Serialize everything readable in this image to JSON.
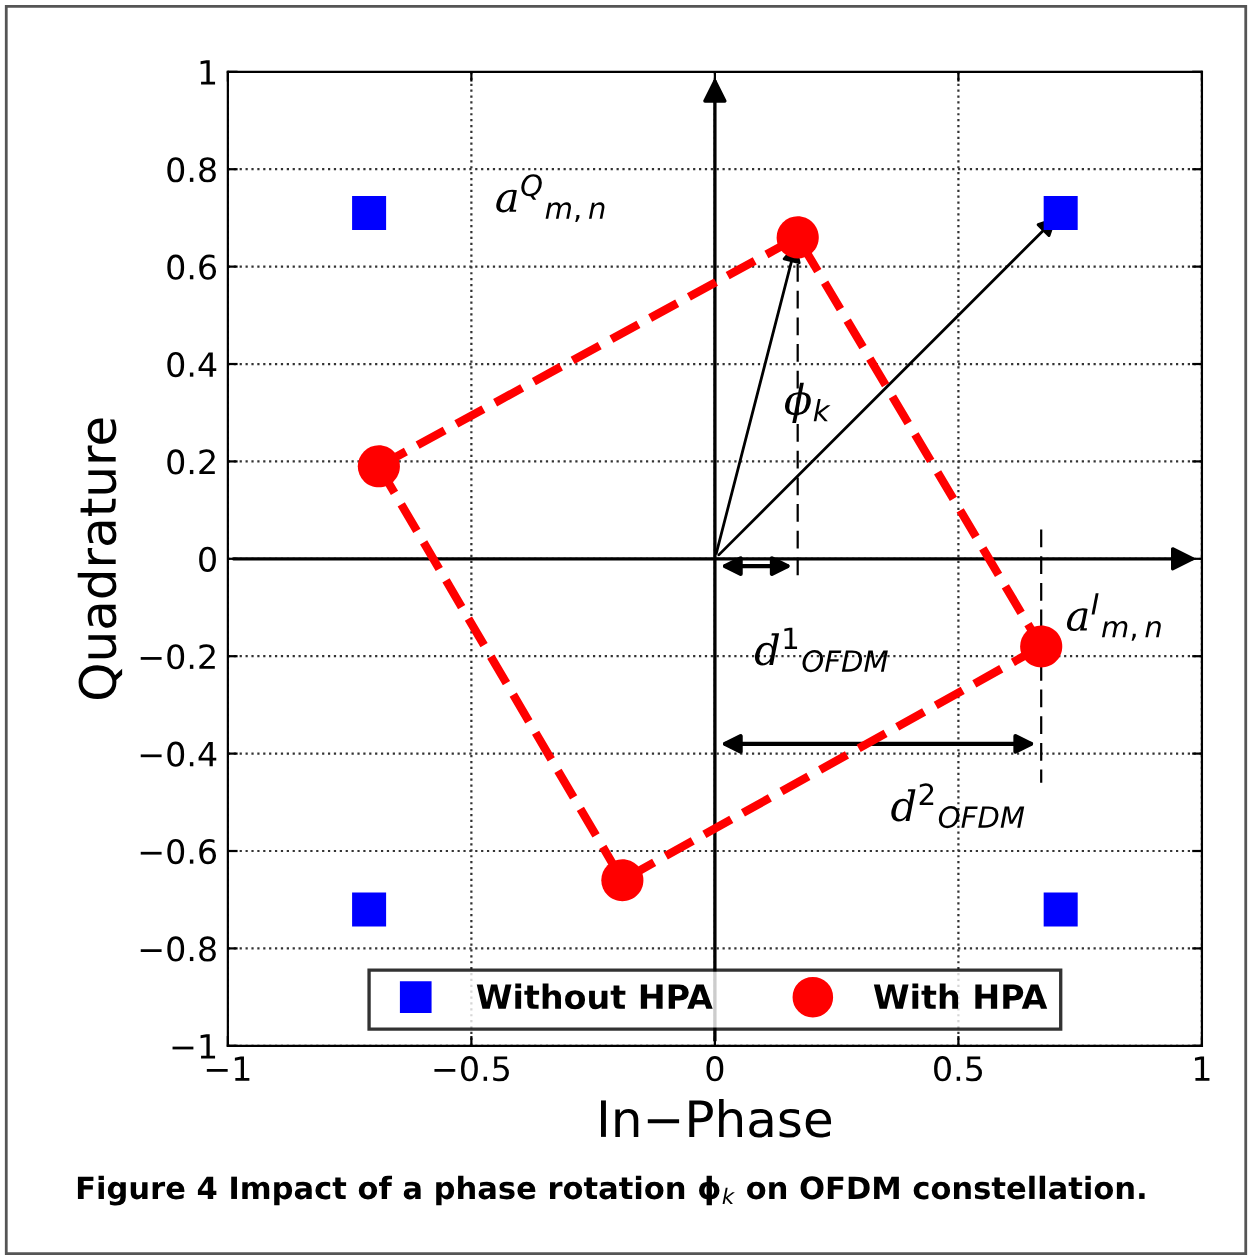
{
  "chart_data": {
    "type": "scatter",
    "xlabel": "In−Phase",
    "ylabel": "Quadrature",
    "xlim": [
      -1,
      1
    ],
    "ylim": [
      -1,
      1
    ],
    "xticks": [
      {
        "value": -1,
        "label": "−1"
      },
      {
        "value": -0.5,
        "label": "−0.5"
      },
      0,
      0.5,
      1
    ],
    "yticks": [
      {
        "value": -1,
        "label": "−1"
      },
      {
        "value": -0.8,
        "label": "−0.8"
      },
      {
        "value": -0.6,
        "label": "−0.6"
      },
      {
        "value": -0.4,
        "label": "−0.4"
      },
      {
        "value": -0.2,
        "label": "−0.2"
      },
      0,
      0.2,
      0.4,
      0.6,
      0.8,
      1
    ],
    "grid": true,
    "legend": "bottom",
    "series": [
      {
        "type": "line",
        "color": "#ff0000",
        "line_style": "dashed",
        "marker": "none",
        "x": [
          -0.69,
          0.17,
          0.67
        ],
        "values": [
          0.19,
          0.66,
          -0.18
        ]
      },
      {
        "type": "line",
        "color": "#ff0000",
        "line_style": "dashed",
        "marker": "none",
        "x": [
          -0.69,
          -0.19,
          0.67
        ],
        "values": [
          0.19,
          -0.66,
          -0.18
        ]
      },
      {
        "name": "Without HPA",
        "color": "#0000ff",
        "marker": "square",
        "x": [
          -0.71,
          0.71,
          -0.71,
          0.71
        ],
        "values": [
          0.71,
          0.71,
          -0.72,
          -0.72
        ]
      },
      {
        "name": "With HPA",
        "color": "#ff0000",
        "marker": "circle",
        "x": [
          0.17,
          0.67,
          -0.19,
          -0.69
        ],
        "values": [
          0.66,
          -0.18,
          -0.66,
          0.19
        ]
      }
    ],
    "annotations": [
      "a$^{Q}$$_{m,n}$",
      "ϕ$_{k}$",
      "a$^{I}$$_{m,n}$",
      "d$^{1}$$_{OFDM}$",
      "d$^{2}$$_{OFDM}$",
      "Figure 4 Impact of a phase rotation ϕ$_{k}$ on OFDM constellation."
    ]
  }
}
